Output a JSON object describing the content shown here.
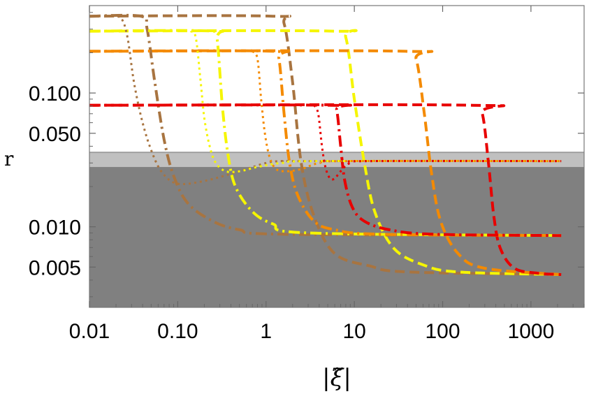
{
  "chart_data": {
    "type": "line",
    "xlabel": "|ξ̃|",
    "ylabel": "r",
    "x_scale": "log",
    "y_scale": "log",
    "xlim": [
      0.01,
      4000
    ],
    "ylim": [
      0.0025,
      0.45
    ],
    "x_ticks": [
      {
        "value": 0.01,
        "label": "0.01"
      },
      {
        "value": 0.1,
        "label": "0.10"
      },
      {
        "value": 1,
        "label": "1"
      },
      {
        "value": 10,
        "label": "10"
      },
      {
        "value": 100,
        "label": "100"
      },
      {
        "value": 1000,
        "label": "1000"
      }
    ],
    "y_ticks": [
      {
        "value": 0.005,
        "label": "0.005"
      },
      {
        "value": 0.01,
        "label": "0.010"
      },
      {
        "value": 0.05,
        "label": "0.050"
      },
      {
        "value": 0.1,
        "label": "0.100"
      }
    ],
    "excluded_region": {
      "color": "#808080",
      "y_max": 0.028
    },
    "band_region": {
      "color": "#c0c0c0",
      "y_min": 0.028,
      "y_max": 0.036
    },
    "colors": {
      "brown": "#a87440",
      "yellow": "#f5f500",
      "orange": "#f48a00",
      "red": "#e80000",
      "background": "#ffffff"
    },
    "series": [
      {
        "color": "brown",
        "style": "dashed",
        "points": [
          [
            0.01,
            0.375
          ],
          [
            1.2,
            0.375
          ],
          [
            1.6,
            0.33
          ],
          [
            2,
            0.12
          ],
          [
            2.5,
            0.03
          ],
          [
            3.5,
            0.012
          ],
          [
            6,
            0.0063
          ],
          [
            15,
            0.0051
          ],
          [
            40,
            0.0046
          ],
          [
            2200,
            0.0044
          ]
        ]
      },
      {
        "color": "yellow",
        "style": "dashed",
        "points": [
          [
            0.01,
            0.29
          ],
          [
            6,
            0.29
          ],
          [
            8,
            0.26
          ],
          [
            10,
            0.09
          ],
          [
            13,
            0.03
          ],
          [
            17,
            0.013
          ],
          [
            28,
            0.0069
          ],
          [
            60,
            0.0052
          ],
          [
            150,
            0.0046
          ],
          [
            2200,
            0.0044
          ]
        ]
      },
      {
        "color": "orange",
        "style": "dashed",
        "points": [
          [
            0.01,
            0.205
          ],
          [
            38,
            0.205
          ],
          [
            50,
            0.18
          ],
          [
            62,
            0.07
          ],
          [
            75,
            0.025
          ],
          [
            95,
            0.011
          ],
          [
            150,
            0.0063
          ],
          [
            300,
            0.0049
          ],
          [
            2200,
            0.0044
          ]
        ]
      },
      {
        "color": "red",
        "style": "dashed",
        "points": [
          [
            0.01,
            0.081
          ],
          [
            220,
            0.081
          ],
          [
            280,
            0.071
          ],
          [
            330,
            0.03
          ],
          [
            380,
            0.012
          ],
          [
            450,
            0.0069
          ],
          [
            650,
            0.0049
          ],
          [
            1200,
            0.0045
          ],
          [
            2200,
            0.0044
          ]
        ]
      },
      {
        "color": "brown",
        "style": "dashdot",
        "points": [
          [
            0.01,
            0.375
          ],
          [
            0.038,
            0.375
          ],
          [
            0.045,
            0.3
          ],
          [
            0.055,
            0.12
          ],
          [
            0.07,
            0.045
          ],
          [
            0.09,
            0.024
          ],
          [
            0.13,
            0.015
          ],
          [
            0.25,
            0.011
          ],
          [
            0.5,
            0.0095
          ],
          [
            1.5,
            0.0088
          ],
          [
            2200,
            0.0086
          ]
        ]
      },
      {
        "color": "yellow",
        "style": "dashdot",
        "points": [
          [
            0.01,
            0.29
          ],
          [
            0.25,
            0.29
          ],
          [
            0.28,
            0.25
          ],
          [
            0.32,
            0.08
          ],
          [
            0.37,
            0.035
          ],
          [
            0.45,
            0.02
          ],
          [
            0.7,
            0.013
          ],
          [
            1.2,
            0.0105
          ],
          [
            3,
            0.009
          ],
          [
            2200,
            0.0086
          ]
        ]
      },
      {
        "color": "orange",
        "style": "dashdot",
        "points": [
          [
            0.01,
            0.205
          ],
          [
            1.2,
            0.205
          ],
          [
            1.4,
            0.18
          ],
          [
            1.6,
            0.07
          ],
          [
            1.85,
            0.03
          ],
          [
            2.3,
            0.017
          ],
          [
            3.5,
            0.011
          ],
          [
            6,
            0.0095
          ],
          [
            20,
            0.0088
          ],
          [
            2200,
            0.0086
          ]
        ]
      },
      {
        "color": "red",
        "style": "dashdot",
        "points": [
          [
            0.01,
            0.081
          ],
          [
            5.5,
            0.081
          ],
          [
            6.3,
            0.075
          ],
          [
            7,
            0.04
          ],
          [
            7.8,
            0.022
          ],
          [
            9.5,
            0.014
          ],
          [
            13,
            0.011
          ],
          [
            25,
            0.0095
          ],
          [
            80,
            0.0088
          ],
          [
            2200,
            0.0086
          ]
        ]
      },
      {
        "color": "brown",
        "style": "dotted",
        "points": [
          [
            0.018,
            0.375
          ],
          [
            0.023,
            0.36
          ],
          [
            0.027,
            0.26
          ],
          [
            0.032,
            0.12
          ],
          [
            0.04,
            0.06
          ],
          [
            0.052,
            0.035
          ],
          [
            0.068,
            0.025
          ],
          [
            0.1,
            0.021
          ],
          [
            0.2,
            0.022
          ],
          [
            0.5,
            0.026
          ],
          [
            1,
            0.03
          ],
          [
            1.5,
            0.031
          ],
          [
            3,
            0.031
          ],
          [
            2200,
            0.031
          ]
        ]
      },
      {
        "color": "yellow",
        "style": "dotted",
        "points": [
          [
            0.14,
            0.29
          ],
          [
            0.16,
            0.26
          ],
          [
            0.18,
            0.13
          ],
          [
            0.2,
            0.065
          ],
          [
            0.23,
            0.04
          ],
          [
            0.27,
            0.03
          ],
          [
            0.35,
            0.026
          ],
          [
            0.5,
            0.026
          ],
          [
            0.8,
            0.028
          ],
          [
            1.5,
            0.03
          ],
          [
            4,
            0.031
          ],
          [
            2200,
            0.031
          ]
        ]
      },
      {
        "color": "orange",
        "style": "dotted",
        "points": [
          [
            0.7,
            0.205
          ],
          [
            0.8,
            0.18
          ],
          [
            0.88,
            0.09
          ],
          [
            0.97,
            0.05
          ],
          [
            1.1,
            0.033
          ],
          [
            1.3,
            0.027
          ],
          [
            1.7,
            0.026
          ],
          [
            2.5,
            0.027
          ],
          [
            4,
            0.03
          ],
          [
            8,
            0.031
          ],
          [
            2200,
            0.031
          ]
        ]
      },
      {
        "color": "red",
        "style": "dotted",
        "points": [
          [
            3.5,
            0.081
          ],
          [
            3.9,
            0.07
          ],
          [
            4.3,
            0.04
          ],
          [
            4.7,
            0.028
          ],
          [
            5.3,
            0.023
          ],
          [
            6,
            0.023
          ],
          [
            7,
            0.026
          ],
          [
            9,
            0.03
          ],
          [
            15,
            0.031
          ],
          [
            2200,
            0.031
          ]
        ]
      }
    ]
  }
}
